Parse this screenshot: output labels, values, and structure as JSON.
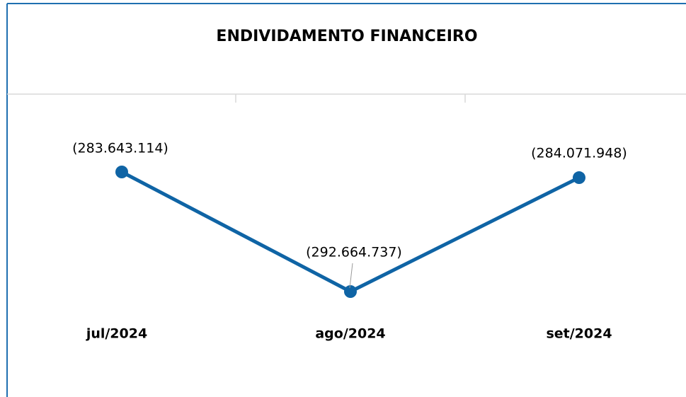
{
  "chart_data": {
    "type": "line",
    "title": "ENDIVIDAMENTO  FINANCEIRO",
    "categories": [
      "jul/2024",
      "ago/2024",
      "set/2024"
    ],
    "values": [
      -283643114,
      -292664737,
      -284071948
    ],
    "value_labels": [
      "(283.643.114)",
      "(292.664.737)",
      "(284.071.948)"
    ],
    "color": "#0f64a5"
  }
}
